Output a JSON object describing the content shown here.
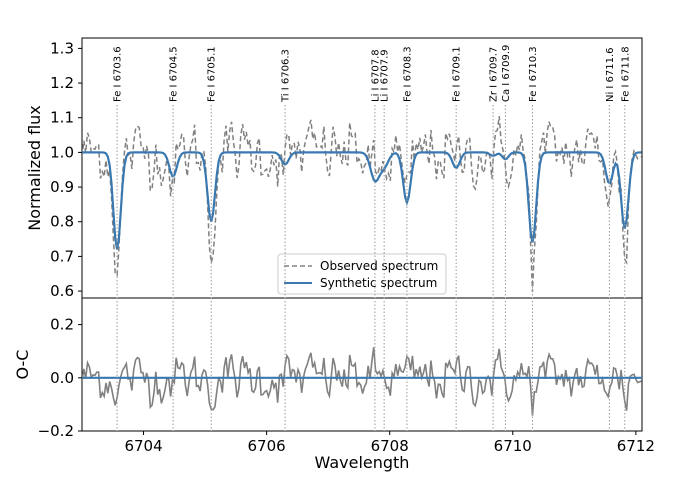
{
  "chart_data": {
    "type": "line",
    "xlabel": "Wavelength",
    "xlim": [
      6703.0,
      6712.1
    ],
    "xticks": [
      6704,
      6706,
      6708,
      6710,
      6712
    ],
    "top_panel": {
      "ylabel": "Normalized flux",
      "ylim": [
        0.58,
        1.33
      ],
      "yticks": [
        0.6,
        0.7,
        0.8,
        0.9,
        1.0,
        1.1,
        1.2,
        1.3
      ],
      "ytick_labels": [
        "0.6",
        "0.7",
        "0.8",
        "0.9",
        "1.0",
        "1.1",
        "1.2",
        "1.3"
      ],
      "series": [
        {
          "name": "Observed spectrum",
          "style": "dashed",
          "color": "#808080"
        },
        {
          "name": "Synthetic spectrum",
          "style": "solid",
          "color": "#3a78b0"
        }
      ],
      "legend_position": "bottom-center"
    },
    "bottom_panel": {
      "ylabel": "O-C",
      "ylim": [
        -0.2,
        0.3
      ],
      "yticks": [
        -0.2,
        0.0,
        0.2
      ],
      "ytick_labels": [
        "−0.2",
        "0.0",
        "0.2"
      ],
      "zero_line_color": "#3a78b0",
      "residual_color": "#808080"
    },
    "spectral_lines": [
      {
        "label": "Fe I 6703.6",
        "wavelength": 6703.57,
        "depth": 0.28,
        "width": 0.06
      },
      {
        "label": "Fe I 6704.5",
        "wavelength": 6704.48,
        "depth": 0.07,
        "width": 0.06
      },
      {
        "label": "Fe I 6705.1",
        "wavelength": 6705.1,
        "depth": 0.2,
        "width": 0.06
      },
      {
        "label": "Ti I 6706.3",
        "wavelength": 6706.3,
        "depth": 0.035,
        "width": 0.06
      },
      {
        "label": "Li I 6707.8",
        "wavelength": 6707.76,
        "depth": 0.08,
        "width": 0.07
      },
      {
        "label": "Li I 6707.9",
        "wavelength": 6707.91,
        "depth": 0.04,
        "width": 0.07
      },
      {
        "label": "Fe I 6708.3",
        "wavelength": 6708.28,
        "depth": 0.145,
        "width": 0.06
      },
      {
        "label": "Fe I 6709.1",
        "wavelength": 6709.08,
        "depth": 0.045,
        "width": 0.06
      },
      {
        "label": "Zr I 6709.7",
        "wavelength": 6709.68,
        "depth": 0.01,
        "width": 0.05
      },
      {
        "label": "Ca I 6709.9",
        "wavelength": 6709.88,
        "depth": 0.02,
        "width": 0.05
      },
      {
        "label": "Fe I 6710.3",
        "wavelength": 6710.32,
        "depth": 0.26,
        "width": 0.06
      },
      {
        "label": "Ni I 6711.6",
        "wavelength": 6711.57,
        "depth": 0.09,
        "width": 0.06
      },
      {
        "label": "Fe I 6711.8",
        "wavelength": 6711.82,
        "depth": 0.22,
        "width": 0.06
      }
    ],
    "continuum": 1.0,
    "noise_sigma": 0.055,
    "sample_step": 0.03
  }
}
